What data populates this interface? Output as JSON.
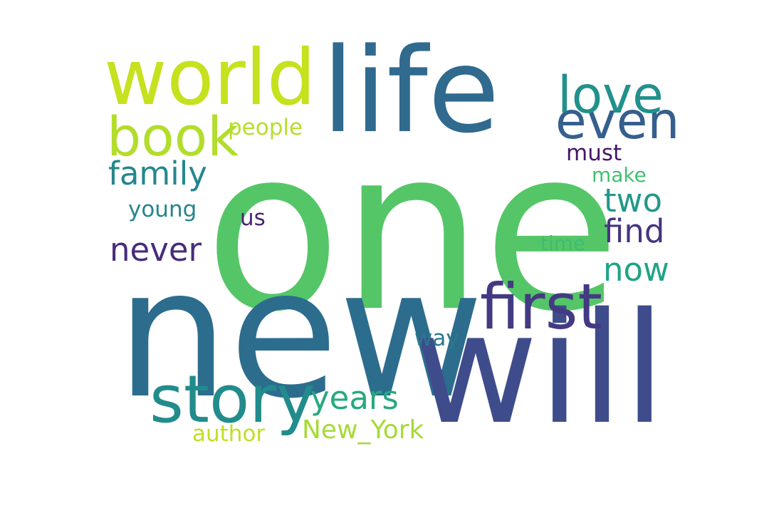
{
  "words": {
    "one": {
      "text": "one",
      "color": "#55c667"
    },
    "new": {
      "text": "new",
      "color": "#2c6d8e"
    },
    "will": {
      "text": "will",
      "color": "#3f4c8b"
    },
    "life": {
      "text": "life",
      "color": "#306a8e"
    },
    "world": {
      "text": "world",
      "color": "#c6e11e"
    },
    "story": {
      "text": "story",
      "color": "#228c8c"
    },
    "first": {
      "text": "first",
      "color": "#433a83"
    },
    "book": {
      "text": "book",
      "color": "#b2dd2c"
    },
    "even": {
      "text": "even",
      "color": "#355f8d"
    },
    "love": {
      "text": "love",
      "color": "#21918c"
    },
    "family": {
      "text": "family",
      "color": "#23878d"
    },
    "never": {
      "text": "never",
      "color": "#472d7b"
    },
    "years": {
      "text": "years",
      "color": "#27a980"
    },
    "two": {
      "text": "two",
      "color": "#21988a"
    },
    "find": {
      "text": "find",
      "color": "#463480"
    },
    "now": {
      "text": "now",
      "color": "#20a386"
    },
    "new_york": {
      "text": "New_York",
      "color": "#a5db36"
    },
    "people": {
      "text": "people",
      "color": "#b5de2b"
    },
    "young": {
      "text": "young",
      "color": "#25858e"
    },
    "author": {
      "text": "author",
      "color": "#c0df25"
    },
    "must": {
      "text": "must",
      "color": "#481769"
    },
    "make": {
      "text": "make",
      "color": "#44bf70"
    },
    "time": {
      "text": "time",
      "color": "#3fbc73"
    },
    "us": {
      "text": "us",
      "color": "#482576"
    },
    "way": {
      "text": "way",
      "color": "#2a788e"
    }
  }
}
